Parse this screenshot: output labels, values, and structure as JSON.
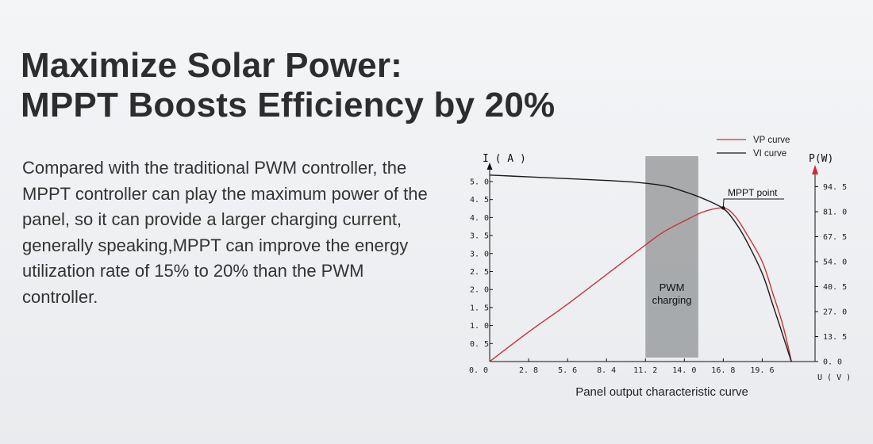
{
  "headline": {
    "line1": "Maximize Solar Power:",
    "line2": "MPPT Boosts Efficiency by 20%"
  },
  "description": "Compared with the traditional PWM controller, the MPPT controller can play the maximum power of the panel, so it can provide a larger charging current, generally speaking,MPPT can improve the energy utilization rate of 15% to 20% than the PWM controller.",
  "colors": {
    "vp_curve": "#c8323a",
    "vi_curve": "#1a1a1a",
    "pwm_band": "#a3a5a8",
    "axis_arrow_right": "#d9242c"
  },
  "chart_data": {
    "type": "line",
    "caption": "Panel output characteristic curve",
    "x_axis": {
      "label": "U ( V )",
      "min": 0,
      "max": 23.4,
      "origin_label": "0. 0",
      "ticks": [
        {
          "value": 2.8,
          "label": "2. 8"
        },
        {
          "value": 5.6,
          "label": "5. 6"
        },
        {
          "value": 8.4,
          "label": "8. 4"
        },
        {
          "value": 11.2,
          "label": "11. 2"
        },
        {
          "value": 14.0,
          "label": "14. 0"
        },
        {
          "value": 16.8,
          "label": "16. 8"
        },
        {
          "value": 19.6,
          "label": "19. 6"
        }
      ]
    },
    "y_axis_left": {
      "label": "I ( A )",
      "min": 0,
      "max": 5.55,
      "ticks": [
        {
          "value": 0.5,
          "label": "0. 5"
        },
        {
          "value": 1.0,
          "label": "1. 0"
        },
        {
          "value": 1.5,
          "label": "1. 5"
        },
        {
          "value": 2.0,
          "label": "2. 0"
        },
        {
          "value": 2.5,
          "label": "2. 5"
        },
        {
          "value": 3.0,
          "label": "3. 0"
        },
        {
          "value": 3.5,
          "label": "3. 5"
        },
        {
          "value": 4.0,
          "label": "4. 0"
        },
        {
          "value": 4.5,
          "label": "4. 5"
        },
        {
          "value": 5.0,
          "label": "5. 0"
        }
      ]
    },
    "y_axis_right": {
      "label": "P(W)",
      "min": 0,
      "max": 108,
      "ticks": [
        {
          "value": 0.0,
          "label": "0. 0"
        },
        {
          "value": 13.5,
          "label": "13. 5"
        },
        {
          "value": 27.0,
          "label": "27. 0"
        },
        {
          "value": 40.5,
          "label": "40. 5"
        },
        {
          "value": 54.0,
          "label": "54. 0"
        },
        {
          "value": 67.5,
          "label": "67. 5"
        },
        {
          "value": 81.0,
          "label": "81. 0"
        },
        {
          "value": 94.5,
          "label": "94. 5"
        }
      ]
    },
    "series": [
      {
        "name": "VP curve",
        "axis": "right",
        "x": [
          0,
          2.8,
          5.6,
          8.4,
          11.2,
          12.5,
          14.0,
          15.4,
          16.8,
          17.6,
          18.4,
          19.6,
          20.4,
          21.0,
          21.4,
          21.7
        ],
        "y": [
          0,
          16,
          31,
          47,
          63,
          70,
          76,
          81,
          83,
          79,
          70,
          54,
          36,
          22,
          10,
          0
        ]
      },
      {
        "name": "VI curve",
        "axis": "left",
        "x": [
          0,
          2.8,
          5.6,
          8.4,
          10.5,
          12.6,
          14.0,
          15.4,
          16.8,
          17.6,
          18.4,
          19.6,
          20.3,
          20.9,
          21.4,
          21.7
        ],
        "y": [
          5.18,
          5.13,
          5.08,
          5.03,
          4.98,
          4.88,
          4.72,
          4.52,
          4.25,
          3.9,
          3.4,
          2.45,
          1.65,
          0.95,
          0.35,
          0
        ]
      }
    ],
    "pwm_band": {
      "x_start": 11.2,
      "x_end": 15.0,
      "label_line1": "PWM",
      "label_line2": "charging"
    },
    "annotation": {
      "label": "MPPT point",
      "x": 16.8,
      "y_power": 83
    }
  }
}
